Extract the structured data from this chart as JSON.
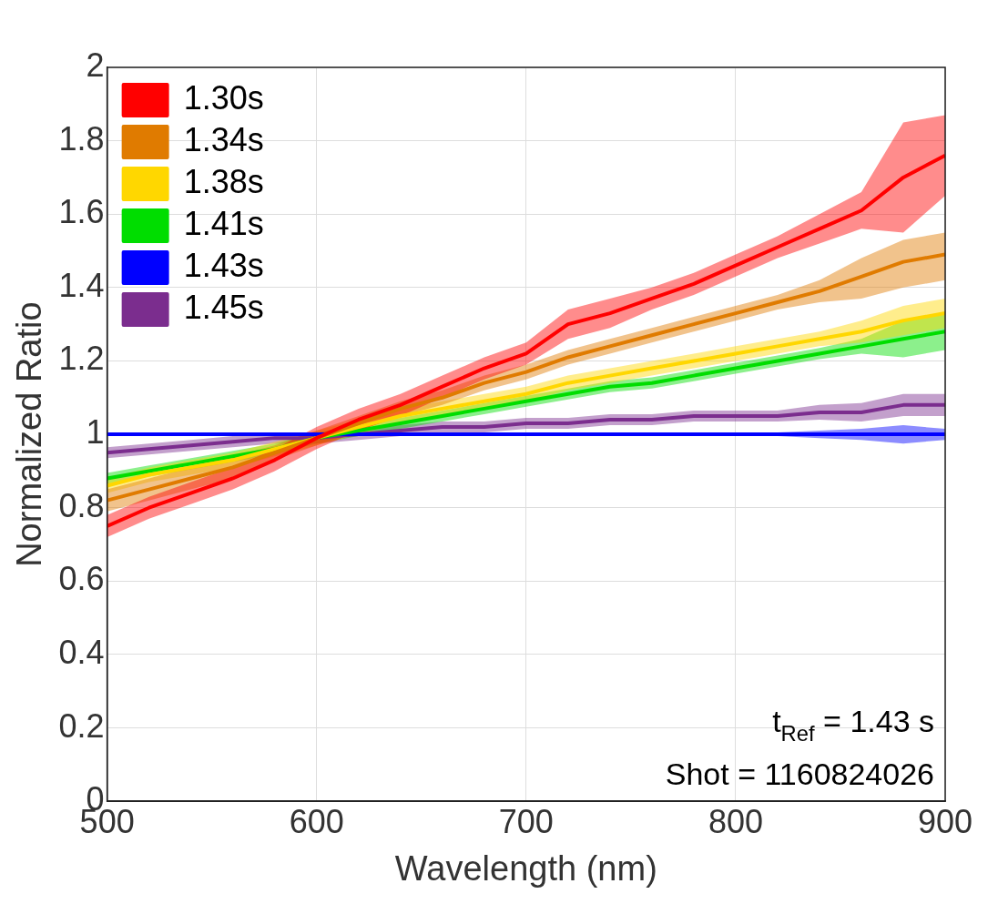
{
  "chart_data": {
    "type": "line",
    "xlabel": "Wavelength (nm)",
    "ylabel": "Normalized Ratio",
    "x": [
      500,
      520,
      540,
      560,
      580,
      600,
      620,
      640,
      660,
      680,
      700,
      720,
      740,
      760,
      780,
      800,
      820,
      840,
      860,
      880,
      900
    ],
    "series": [
      {
        "name": "1.30s",
        "color": "#ff0000",
        "values": [
          0.75,
          0.8,
          0.84,
          0.88,
          0.93,
          0.99,
          1.04,
          1.08,
          1.13,
          1.18,
          1.22,
          1.3,
          1.33,
          1.37,
          1.41,
          1.46,
          1.51,
          1.56,
          1.61,
          1.7,
          1.76
        ],
        "lower": [
          0.72,
          0.77,
          0.81,
          0.85,
          0.9,
          0.96,
          1.01,
          1.05,
          1.1,
          1.15,
          1.19,
          1.26,
          1.29,
          1.34,
          1.38,
          1.43,
          1.48,
          1.52,
          1.56,
          1.55,
          1.65
        ],
        "upper": [
          0.78,
          0.83,
          0.87,
          0.91,
          0.96,
          1.02,
          1.07,
          1.11,
          1.16,
          1.21,
          1.25,
          1.34,
          1.37,
          1.4,
          1.44,
          1.49,
          1.54,
          1.6,
          1.66,
          1.85,
          1.87
        ]
      },
      {
        "name": "1.34s",
        "color": "#e07b00",
        "values": [
          0.82,
          0.85,
          0.88,
          0.91,
          0.95,
          0.99,
          1.03,
          1.07,
          1.1,
          1.14,
          1.17,
          1.21,
          1.24,
          1.27,
          1.3,
          1.33,
          1.36,
          1.39,
          1.43,
          1.47,
          1.49
        ],
        "lower": [
          0.79,
          0.82,
          0.85,
          0.88,
          0.93,
          0.97,
          1.01,
          1.05,
          1.08,
          1.12,
          1.15,
          1.19,
          1.22,
          1.25,
          1.28,
          1.31,
          1.34,
          1.36,
          1.37,
          1.4,
          1.42
        ],
        "upper": [
          0.85,
          0.88,
          0.91,
          0.94,
          0.97,
          1.01,
          1.05,
          1.09,
          1.12,
          1.16,
          1.19,
          1.23,
          1.26,
          1.29,
          1.32,
          1.35,
          1.38,
          1.42,
          1.48,
          1.53,
          1.55
        ]
      },
      {
        "name": "1.38s",
        "color": "#ffd700",
        "values": [
          0.86,
          0.89,
          0.91,
          0.93,
          0.96,
          0.99,
          1.02,
          1.05,
          1.07,
          1.09,
          1.11,
          1.14,
          1.16,
          1.18,
          1.2,
          1.22,
          1.24,
          1.26,
          1.28,
          1.31,
          1.33
        ],
        "lower": [
          0.84,
          0.87,
          0.89,
          0.91,
          0.94,
          0.97,
          1.0,
          1.03,
          1.05,
          1.07,
          1.09,
          1.12,
          1.14,
          1.16,
          1.18,
          1.2,
          1.22,
          1.24,
          1.25,
          1.27,
          1.29
        ],
        "upper": [
          0.88,
          0.91,
          0.93,
          0.95,
          0.98,
          1.01,
          1.04,
          1.07,
          1.09,
          1.11,
          1.13,
          1.16,
          1.18,
          1.2,
          1.22,
          1.24,
          1.26,
          1.28,
          1.31,
          1.35,
          1.37
        ]
      },
      {
        "name": "1.41s",
        "color": "#00dd00",
        "values": [
          0.88,
          0.9,
          0.92,
          0.94,
          0.96,
          0.99,
          1.01,
          1.03,
          1.05,
          1.07,
          1.09,
          1.11,
          1.13,
          1.14,
          1.16,
          1.18,
          1.2,
          1.22,
          1.24,
          1.26,
          1.28
        ],
        "lower": [
          0.865,
          0.885,
          0.905,
          0.925,
          0.945,
          0.975,
          0.995,
          1.015,
          1.035,
          1.055,
          1.075,
          1.095,
          1.115,
          1.125,
          1.145,
          1.165,
          1.185,
          1.205,
          1.22,
          1.21,
          1.23
        ],
        "upper": [
          0.895,
          0.915,
          0.935,
          0.955,
          0.975,
          1.005,
          1.025,
          1.045,
          1.065,
          1.085,
          1.105,
          1.125,
          1.145,
          1.155,
          1.175,
          1.195,
          1.215,
          1.235,
          1.26,
          1.31,
          1.33
        ]
      },
      {
        "name": "1.43s",
        "color": "#0000ff",
        "values": [
          1.0,
          1.0,
          1.0,
          1.0,
          1.0,
          1.0,
          1.0,
          1.0,
          1.0,
          1.0,
          1.0,
          1.0,
          1.0,
          1.0,
          1.0,
          1.0,
          1.0,
          1.0,
          1.0,
          1.0,
          1.0
        ],
        "lower": [
          0.995,
          0.995,
          0.995,
          0.995,
          0.995,
          0.995,
          0.995,
          0.995,
          0.995,
          0.995,
          0.995,
          0.995,
          0.995,
          0.995,
          0.995,
          0.995,
          0.995,
          0.99,
          0.985,
          0.975,
          0.985
        ],
        "upper": [
          1.005,
          1.005,
          1.005,
          1.005,
          1.005,
          1.005,
          1.005,
          1.005,
          1.005,
          1.005,
          1.005,
          1.005,
          1.005,
          1.005,
          1.005,
          1.005,
          1.005,
          1.01,
          1.015,
          1.025,
          1.015
        ]
      },
      {
        "name": "1.45s",
        "color": "#7b2d8e",
        "values": [
          0.95,
          0.96,
          0.97,
          0.98,
          0.99,
          0.99,
          1.0,
          1.01,
          1.02,
          1.02,
          1.03,
          1.03,
          1.04,
          1.04,
          1.05,
          1.05,
          1.05,
          1.06,
          1.06,
          1.08,
          1.08
        ],
        "lower": [
          0.935,
          0.945,
          0.955,
          0.965,
          0.975,
          0.975,
          0.985,
          0.995,
          1.005,
          1.005,
          1.015,
          1.015,
          1.025,
          1.025,
          1.035,
          1.035,
          1.035,
          1.04,
          1.035,
          1.05,
          1.05
        ],
        "upper": [
          0.965,
          0.975,
          0.985,
          0.995,
          1.005,
          1.005,
          1.015,
          1.025,
          1.035,
          1.035,
          1.045,
          1.045,
          1.055,
          1.055,
          1.065,
          1.065,
          1.065,
          1.08,
          1.085,
          1.11,
          1.11
        ]
      }
    ],
    "xlim": [
      500,
      900
    ],
    "xticks": [
      500,
      600,
      700,
      800,
      900
    ],
    "ylim": [
      0,
      2
    ],
    "yticks": [
      0,
      {
        "value": 0.2,
        "label": "0.2"
      },
      {
        "value": 0.4,
        "label": "0.4"
      },
      {
        "value": 0.6,
        "label": "0.6"
      },
      {
        "value": 0.8,
        "label": "0.8"
      },
      1,
      {
        "value": 1.2,
        "label": "1.2"
      },
      {
        "value": 1.4,
        "label": "1.4"
      },
      {
        "value": 1.6,
        "label": "1.6"
      },
      {
        "value": 1.8,
        "label": "1.8"
      },
      2
    ],
    "grid": true,
    "legend": "top left",
    "marker": "none",
    "line_style": "solid",
    "annotations": [
      "t$_{Ref}$ = 1.43 s",
      "Shot = 1160824026"
    ]
  }
}
